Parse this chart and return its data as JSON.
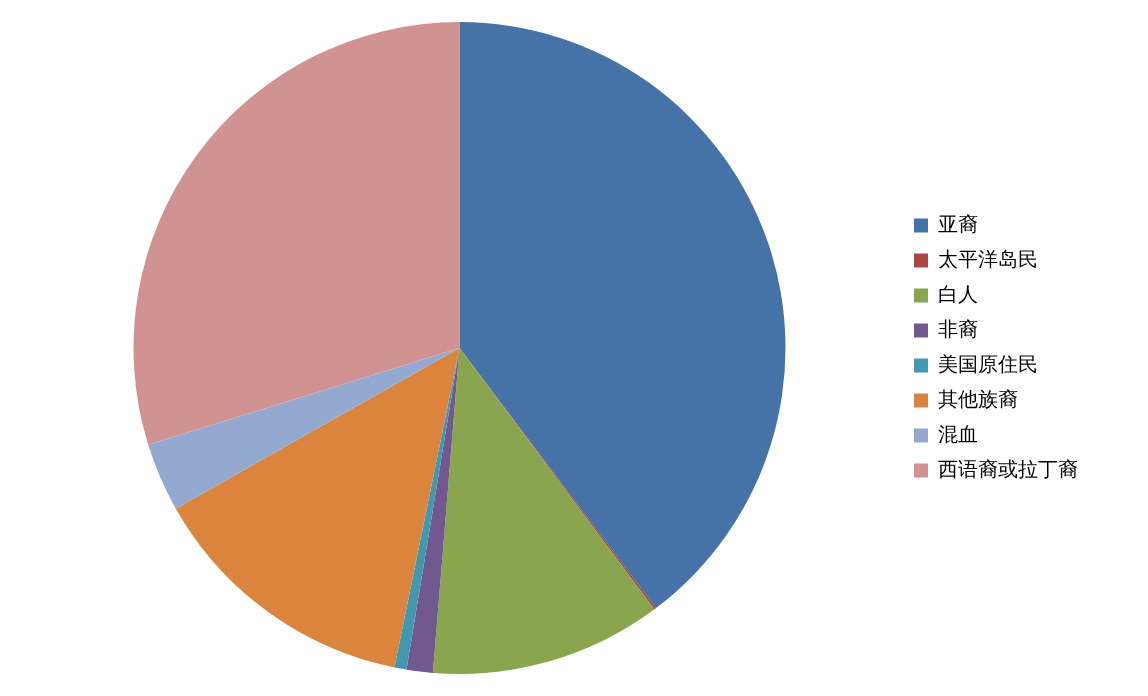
{
  "chart_data": {
    "type": "pie",
    "categories": [
      "亚裔",
      "太平洋岛民",
      "白人",
      "非裔",
      "美国原住民",
      "其他族裔",
      "混血",
      "西语裔或拉丁裔"
    ],
    "values": [
      39.7,
      0.1,
      11.5,
      1.3,
      0.6,
      13.6,
      3.4,
      29.8
    ],
    "colors": [
      "#4572a7",
      "#aa4643",
      "#89a54e",
      "#71588f",
      "#4198af",
      "#db843d",
      "#93a9cf",
      "#d19392"
    ],
    "legend": "right"
  }
}
